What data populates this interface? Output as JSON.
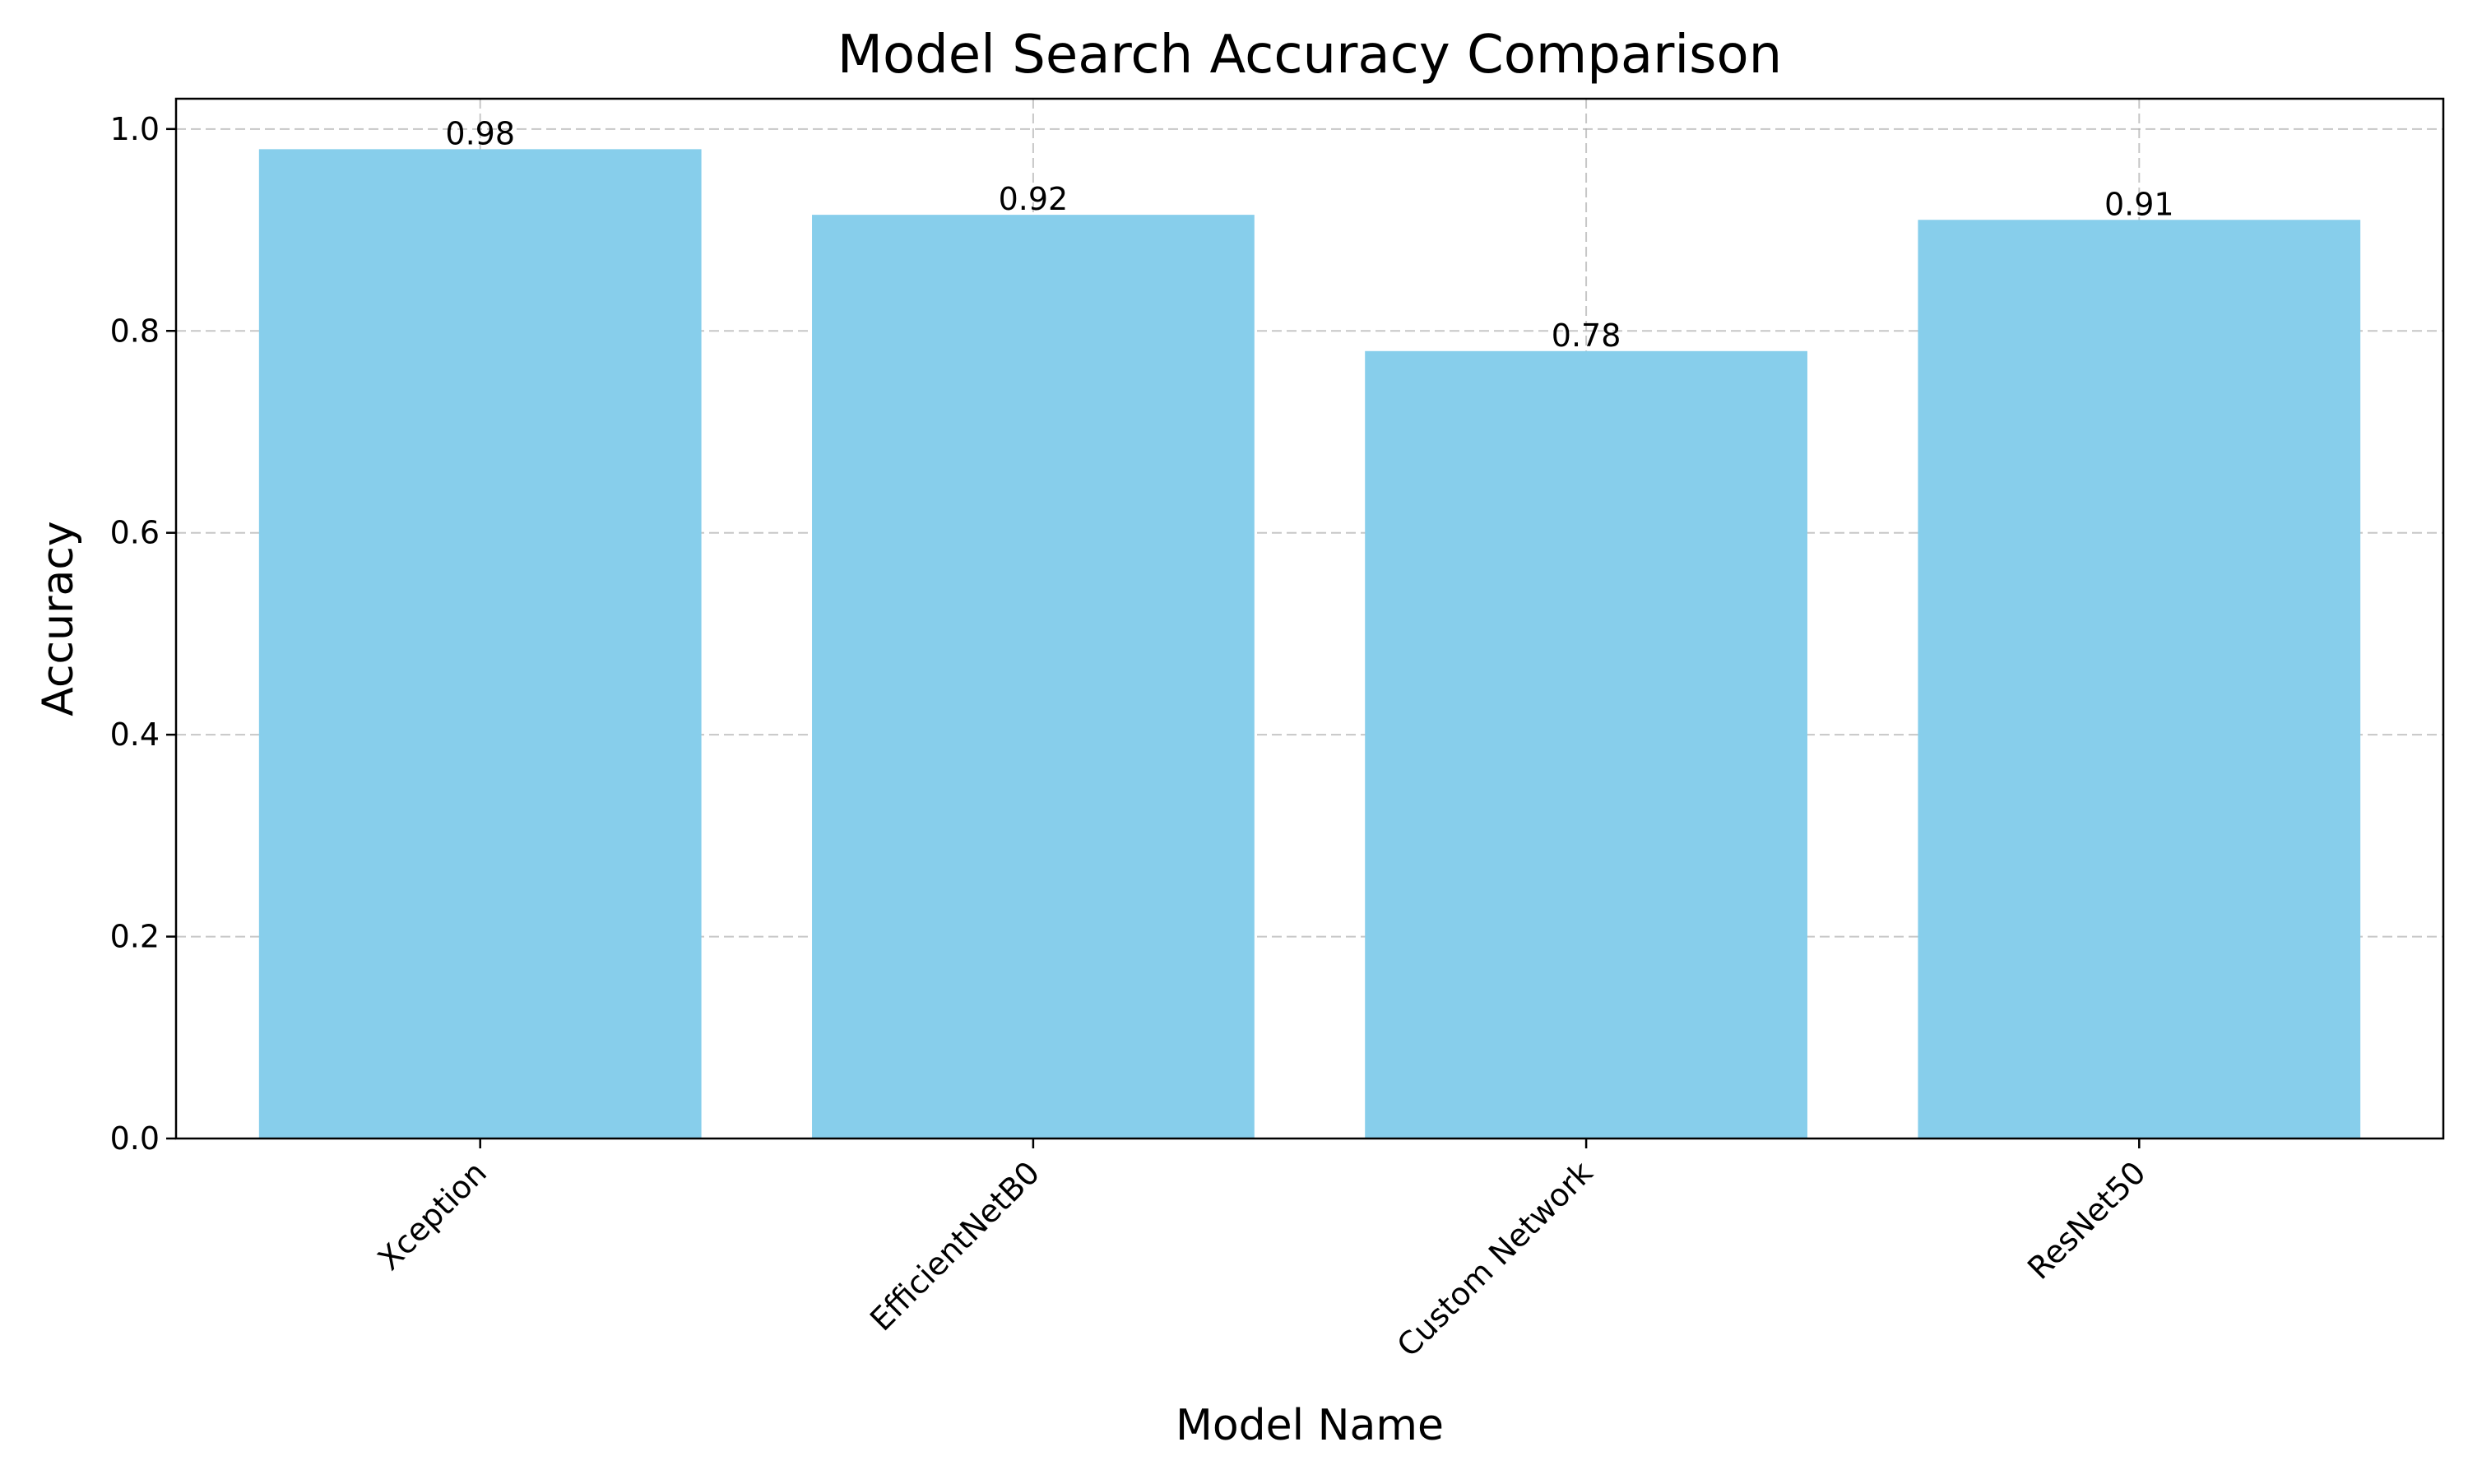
{
  "chart_data": {
    "type": "bar",
    "title": "Model Search Accuracy Comparison",
    "xlabel": "Model Name",
    "ylabel": "Accuracy",
    "categories": [
      "Xception",
      "EfficientNetB0",
      "Custom Network",
      "ResNet50"
    ],
    "values": [
      0.98,
      0.915,
      0.78,
      0.91
    ],
    "data_labels": [
      "0.98",
      "0.92",
      "0.78",
      "0.91"
    ],
    "ylim": [
      0,
      1.03
    ],
    "yticks": [
      0.0,
      0.2,
      0.4,
      0.6,
      0.8,
      1.0
    ],
    "ytick_labels": [
      "0.0",
      "0.2",
      "0.4",
      "0.6",
      "0.8",
      "1.0"
    ],
    "bar_color": "#87CEEB",
    "grid": true,
    "grid_style": "dashed",
    "xtick_rotation": "45 degrees"
  }
}
